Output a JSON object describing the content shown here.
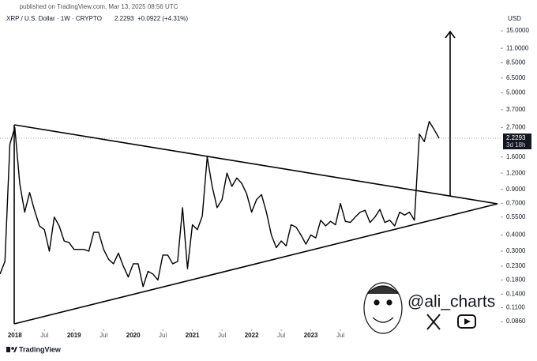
{
  "chart_data": {
    "type": "line",
    "published": "published on TradingView.com, Mar 13, 2025 08:56 UTC",
    "title": "XRP / U.S. Dollar · 1W · CRYPTO",
    "last_value": 2.2293,
    "change_label": "+0.0922 (+4.31%)",
    "countdown": "3d 18h",
    "y_axis_label": "USD",
    "watermark": "@ali_charts",
    "brand": "TradingView",
    "log_scale": true,
    "grid": false,
    "x": [
      "2017-10",
      "2017-11",
      "2017-12",
      "2018-01",
      "2018-02",
      "2018-03",
      "2018-04",
      "2018-05",
      "2018-06",
      "2018-07",
      "2018-08",
      "2018-09",
      "2018-10",
      "2018-11",
      "2018-12",
      "2019-01",
      "2019-02",
      "2019-03",
      "2019-04",
      "2019-05",
      "2019-06",
      "2019-07",
      "2019-08",
      "2019-09",
      "2019-10",
      "2019-11",
      "2019-12",
      "2020-01",
      "2020-02",
      "2020-03",
      "2020-04",
      "2020-05",
      "2020-06",
      "2020-07",
      "2020-08",
      "2020-09",
      "2020-10",
      "2020-11",
      "2020-12",
      "2021-01",
      "2021-02",
      "2021-03",
      "2021-04",
      "2021-05",
      "2021-06",
      "2021-07",
      "2021-08",
      "2021-09",
      "2021-10",
      "2021-11",
      "2021-12",
      "2022-01",
      "2022-02",
      "2022-03",
      "2022-04",
      "2022-05",
      "2022-06",
      "2022-07",
      "2022-08",
      "2022-09",
      "2022-10",
      "2022-11",
      "2022-12",
      "2023-01",
      "2023-02",
      "2023-03",
      "2023-04",
      "2023-05",
      "2023-06",
      "2023-07",
      "2023-08",
      "2023-09",
      "2023-10",
      "2023-11",
      "2023-12",
      "2024-01",
      "2024-02",
      "2024-03",
      "2024-04",
      "2024-05",
      "2024-06",
      "2024-07",
      "2024-08",
      "2024-09",
      "2024-10",
      "2024-11",
      "2024-12",
      "2025-01",
      "2025-02",
      "2025-03"
    ],
    "series": [
      {
        "name": "XRP / U.S. Dollar",
        "color": "#000000",
        "values": [
          0.2,
          0.25,
          2.0,
          2.7,
          1.0,
          0.6,
          0.85,
          0.62,
          0.47,
          0.44,
          0.3,
          0.55,
          0.47,
          0.36,
          0.35,
          0.31,
          0.31,
          0.31,
          0.3,
          0.42,
          0.42,
          0.31,
          0.26,
          0.24,
          0.29,
          0.23,
          0.19,
          0.24,
          0.24,
          0.16,
          0.21,
          0.2,
          0.18,
          0.28,
          0.28,
          0.24,
          0.25,
          0.65,
          0.22,
          0.48,
          0.44,
          0.56,
          1.6,
          0.95,
          0.65,
          0.75,
          1.2,
          0.95,
          1.1,
          1.0,
          0.83,
          0.6,
          0.75,
          0.82,
          0.6,
          0.4,
          0.32,
          0.36,
          0.33,
          0.48,
          0.46,
          0.4,
          0.34,
          0.4,
          0.38,
          0.52,
          0.47,
          0.51,
          0.48,
          0.7,
          0.51,
          0.5,
          0.55,
          0.6,
          0.62,
          0.5,
          0.55,
          0.63,
          0.5,
          0.52,
          0.47,
          0.6,
          0.57,
          0.6,
          0.52,
          2.4,
          2.1,
          3.0,
          2.6,
          2.2293
        ]
      }
    ],
    "xlim": [
      "2017-10",
      "2026-03"
    ],
    "xticks": [
      {
        "value": "2018-01",
        "label": "2018"
      },
      {
        "value": "2018-07",
        "label": "Jul"
      },
      {
        "value": "2019-01",
        "label": "2019"
      },
      {
        "value": "2019-07",
        "label": "Jul"
      },
      {
        "value": "2020-01",
        "label": "2020"
      },
      {
        "value": "2020-07",
        "label": "Jul"
      },
      {
        "value": "2021-01",
        "label": "2021"
      },
      {
        "value": "2021-07",
        "label": "Jul"
      },
      {
        "value": "2022-01",
        "label": "2022"
      },
      {
        "value": "2022-07",
        "label": "Jul"
      },
      {
        "value": "2023-01",
        "label": "2023"
      },
      {
        "value": "2023-07",
        "label": "Jul"
      }
    ],
    "ylim": [
      0.077,
      19.6
    ],
    "yticks": [
      {
        "value": 15,
        "label": "15.0000"
      },
      {
        "value": 11,
        "label": "11.0000"
      },
      {
        "value": 8.5,
        "label": "8.5000"
      },
      {
        "value": 6.5,
        "label": "6.5000"
      },
      {
        "value": 5,
        "label": "5.0000"
      },
      {
        "value": 3.7,
        "label": "3.7000"
      },
      {
        "value": 2.7,
        "label": "2.7000"
      },
      {
        "value": 1.6,
        "label": "1.6000"
      },
      {
        "value": 1.2,
        "label": "1.2000"
      },
      {
        "value": 0.9,
        "label": "0.9000"
      },
      {
        "value": 0.7,
        "label": "0.7000"
      },
      {
        "value": 0.55,
        "label": "0.5500"
      },
      {
        "value": 0.4,
        "label": "0.4000"
      },
      {
        "value": 0.3,
        "label": "0.3000"
      },
      {
        "value": 0.23,
        "label": "0.2300"
      },
      {
        "value": 0.18,
        "label": "0.1800"
      },
      {
        "value": 0.14,
        "label": "0.1400"
      },
      {
        "value": 0.11,
        "label": "0.1100"
      },
      {
        "value": 0.086,
        "label": "0.0860"
      }
    ]
  }
}
